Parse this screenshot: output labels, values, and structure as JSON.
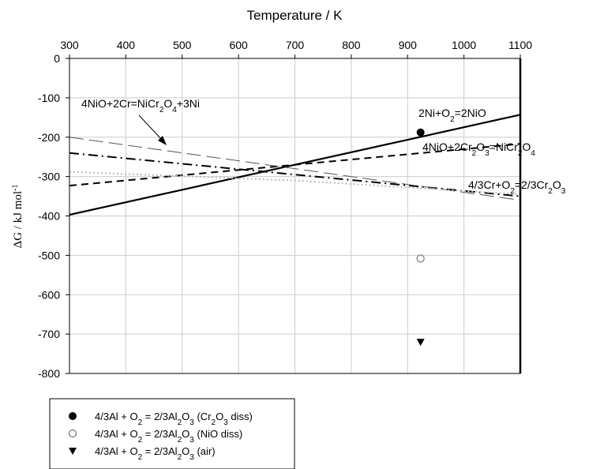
{
  "chart_data": {
    "type": "line",
    "xlabel": "Temperature / K",
    "ylabel_main": "ΔG / kJ mol",
    "ylabel_sup": "-1",
    "xlim": [
      300,
      1100
    ],
    "ylim": [
      -800,
      0
    ],
    "x_ticks": [
      300,
      400,
      500,
      600,
      700,
      800,
      900,
      1000,
      1100
    ],
    "y_ticks": [
      0,
      -100,
      -200,
      -300,
      -400,
      -500,
      -600,
      -700,
      -800
    ],
    "grid": true,
    "series": [
      {
        "key": "nio",
        "style": "solid",
        "color": "#000000",
        "x": [
          300,
          1100
        ],
        "y": [
          -397,
          -143
        ]
      },
      {
        "key": "nicr2o4",
        "style": "dash",
        "color": "#000000",
        "x": [
          300,
          1100
        ],
        "y": [
          -323,
          -217
        ]
      },
      {
        "key": "nio_cr",
        "style": "dashdot",
        "color": "#000000",
        "x": [
          300,
          1100
        ],
        "y": [
          -240,
          -350
        ]
      },
      {
        "key": "cr2o3",
        "style": "longdash",
        "color": "#555555",
        "x": [
          300,
          1100
        ],
        "y": [
          -200,
          -360
        ]
      },
      {
        "key": "dotted",
        "style": "dotted",
        "color": "#bbbbbb",
        "x": [
          300,
          700,
          1100
        ],
        "y": [
          -288,
          -310,
          -345
        ]
      }
    ],
    "markers": [
      {
        "legend_index": 0,
        "shape": "filled-circle",
        "x": 923,
        "y": -188
      },
      {
        "legend_index": 1,
        "shape": "open-circle",
        "x": 923,
        "y": -508
      },
      {
        "legend_index": 2,
        "shape": "filled-triangle",
        "x": 923,
        "y": -720
      }
    ],
    "annotations": [
      {
        "key": "nio",
        "parts": [
          [
            "2Ni+O",
            ""
          ],
          [
            "2",
            "sub"
          ],
          [
            "=2NiO",
            ""
          ]
        ]
      },
      {
        "key": "nicr2o4",
        "parts": [
          [
            "4NiO+2Cr",
            ""
          ],
          [
            "2",
            "sub"
          ],
          [
            "O",
            ""
          ],
          [
            "3",
            "sub"
          ],
          [
            "=NiCr",
            ""
          ],
          [
            "2",
            "sub"
          ],
          [
            "O",
            ""
          ],
          [
            "4",
            "sub"
          ]
        ]
      },
      {
        "key": "cr2o3",
        "parts": [
          [
            "4/3Cr+O",
            ""
          ],
          [
            "2",
            "sub"
          ],
          [
            "=2/3Cr",
            ""
          ],
          [
            "2",
            "sub"
          ],
          [
            "O",
            ""
          ],
          [
            "3",
            "sub"
          ]
        ]
      },
      {
        "key": "nio_cr",
        "parts": [
          [
            "4NiO+2Cr=NiCr",
            ""
          ],
          [
            "2",
            "sub"
          ],
          [
            "O",
            ""
          ],
          [
            "4",
            "sub"
          ],
          [
            "+3Ni",
            ""
          ]
        ]
      }
    ],
    "legend": {
      "placement": "bottom-left",
      "entries": [
        {
          "shape": "filled-circle",
          "parts": [
            [
              "4/3Al + O",
              ""
            ],
            [
              "2",
              "sub"
            ],
            [
              " = 2/3Al",
              ""
            ],
            [
              "2",
              "sub"
            ],
            [
              "O",
              ""
            ],
            [
              "3",
              "sub"
            ],
            [
              " (Cr",
              ""
            ],
            [
              "2",
              "sub"
            ],
            [
              "O",
              ""
            ],
            [
              "3",
              "sub"
            ],
            [
              " diss)",
              ""
            ]
          ]
        },
        {
          "shape": "open-circle",
          "parts": [
            [
              "4/3Al + O",
              ""
            ],
            [
              "2",
              "sub"
            ],
            [
              " = 2/3Al",
              ""
            ],
            [
              "2",
              "sub"
            ],
            [
              "O",
              ""
            ],
            [
              "3",
              "sub"
            ],
            [
              " (NiO diss)",
              ""
            ]
          ]
        },
        {
          "shape": "filled-triangle",
          "parts": [
            [
              "4/3Al + O",
              ""
            ],
            [
              "2",
              "sub"
            ],
            [
              " = 2/3Al",
              ""
            ],
            [
              "2",
              "sub"
            ],
            [
              "O",
              ""
            ],
            [
              "3",
              "sub"
            ],
            [
              " (air)",
              ""
            ]
          ]
        }
      ]
    }
  }
}
